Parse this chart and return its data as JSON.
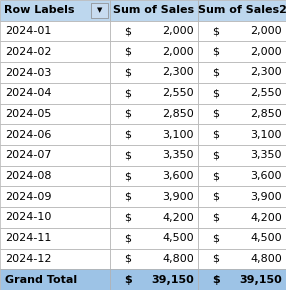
{
  "header": [
    "Row Labels",
    "Sum of Sales",
    "Sum of Sales2"
  ],
  "rows": [
    [
      "2024-01",
      2000,
      2000
    ],
    [
      "2024-02",
      2000,
      2000
    ],
    [
      "2024-03",
      2300,
      2300
    ],
    [
      "2024-04",
      2550,
      2550
    ],
    [
      "2024-05",
      2850,
      2850
    ],
    [
      "2024-06",
      3100,
      3100
    ],
    [
      "2024-07",
      3350,
      3350
    ],
    [
      "2024-08",
      3600,
      3600
    ],
    [
      "2024-09",
      3900,
      3900
    ],
    [
      "2024-10",
      4200,
      4200
    ],
    [
      "2024-11",
      4500,
      4500
    ],
    [
      "2024-12",
      4800,
      4800
    ]
  ],
  "footer": [
    "Grand Total",
    39150,
    39150
  ],
  "header_bg": "#BDD7EE",
  "footer_bg": "#9DC3E6",
  "row_bg": "#FFFFFF",
  "border_color": "#B0B0B0",
  "text_color": "#000000",
  "filter_icon": "▼",
  "figw": 2.86,
  "figh": 2.9,
  "dpi": 100
}
